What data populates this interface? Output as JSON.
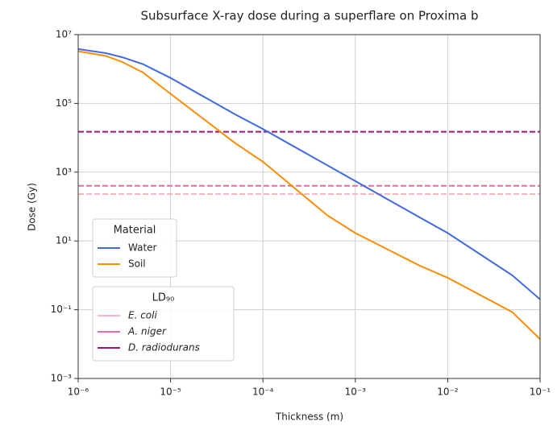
{
  "chart_data": {
    "type": "line",
    "title": "Subsurface X-ray dose during a superflare on Proxima b",
    "xlabel": "Thickness (m)",
    "ylabel": "Dose (Gy)",
    "xscale": "log",
    "yscale": "log",
    "grid": true,
    "xlim": [
      1e-06,
      0.1
    ],
    "ylim": [
      0.001,
      10000000
    ],
    "xticks": [
      {
        "value": 1e-06,
        "label": "10⁻⁶"
      },
      {
        "value": 1e-05,
        "label": "10⁻⁵"
      },
      {
        "value": 0.0001,
        "label": "10⁻⁴"
      },
      {
        "value": 0.001,
        "label": "10⁻³"
      },
      {
        "value": 0.01,
        "label": "10⁻²"
      },
      {
        "value": 0.1,
        "label": "10⁻¹"
      }
    ],
    "yticks": [
      {
        "value": 0.001,
        "label": "10⁻³"
      },
      {
        "value": 0.1,
        "label": "10⁻¹"
      },
      {
        "value": 10,
        "label": "10¹"
      },
      {
        "value": 1000,
        "label": "10³"
      },
      {
        "value": 100000,
        "label": "10⁵"
      },
      {
        "value": 10000000,
        "label": "10⁷"
      }
    ],
    "legend_title": "Material",
    "series": [
      {
        "name": "Water",
        "color": "#4169e1",
        "x": [
          1e-06,
          2e-06,
          3e-06,
          5e-06,
          1e-05,
          5e-05,
          0.0001,
          0.001,
          0.005,
          0.01,
          0.05,
          0.1
        ],
        "values": [
          3800000,
          2900000,
          2200000,
          1400000,
          550000,
          48000,
          18000,
          550,
          48,
          17,
          1.0,
          0.2
        ]
      },
      {
        "name": "Soil",
        "color": "#ff8c00",
        "x": [
          1e-06,
          2e-06,
          3e-06,
          5e-06,
          1e-05,
          5e-05,
          0.0001,
          0.0005,
          0.001,
          0.005,
          0.01,
          0.05,
          0.1
        ],
        "values": [
          3300000,
          2400000,
          1600000,
          800000,
          190000,
          7000,
          2000,
          55,
          17,
          1.9,
          0.85,
          0.085,
          0.014
        ]
      }
    ],
    "hlines_title": "LD₉₀",
    "hlines": [
      {
        "name": "E. coli",
        "color": "#f7b7c0",
        "value": 230
      },
      {
        "name": "A. niger",
        "color": "#ef6aa5",
        "value": 400
      },
      {
        "name": "D. radiodurans",
        "color": "#a0157c",
        "value": 15000
      }
    ]
  }
}
